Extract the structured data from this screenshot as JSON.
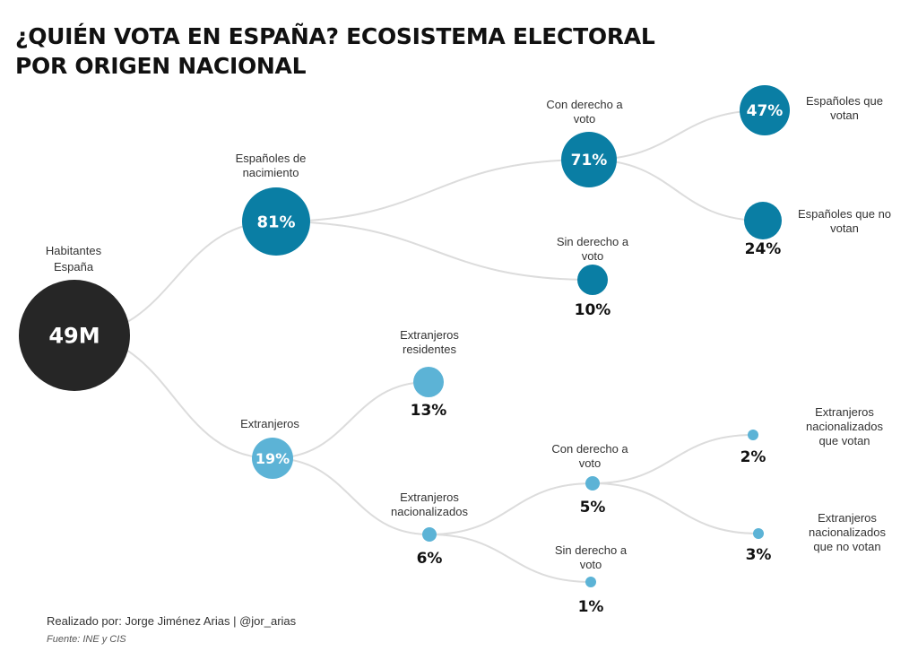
{
  "title": {
    "line1": "¿QUIÉN VOTA EN ESPAÑA? ECOSISTEMA ELECTORAL",
    "line2": "POR ORIGEN NACIONAL"
  },
  "colors": {
    "root": "#262626",
    "dark_blue": "#0a7ea4",
    "light_blue": "#5cb3d6",
    "link": "#dcdcdc"
  },
  "nodes": [
    {
      "id": "root",
      "value": "49M",
      "label": [
        "Habitantes",
        "España"
      ],
      "value_position": "inside",
      "color": "root"
    },
    {
      "id": "esp",
      "parent": "root",
      "value": "81%",
      "label": [
        "Españoles de",
        "nacimiento"
      ],
      "value_position": "inside",
      "color": "dark_blue"
    },
    {
      "id": "esp_con",
      "parent": "esp",
      "value": "71%",
      "label": [
        "Con derecho a",
        "voto"
      ],
      "value_position": "inside",
      "color": "dark_blue"
    },
    {
      "id": "esp_votan",
      "parent": "esp_con",
      "value": "47%",
      "label": [
        "Españoles que",
        "votan"
      ],
      "value_position": "inside",
      "color": "dark_blue"
    },
    {
      "id": "esp_novotan",
      "parent": "esp_con",
      "value": "24%",
      "label": [
        "Españoles que no",
        "votan"
      ],
      "value_position": "below",
      "color": "dark_blue"
    },
    {
      "id": "esp_sin",
      "parent": "esp",
      "value": "10%",
      "label": [
        "Sin derecho a",
        "voto"
      ],
      "value_position": "below",
      "color": "dark_blue"
    },
    {
      "id": "ext",
      "parent": "root",
      "value": "19%",
      "label": [
        "Extranjeros"
      ],
      "value_position": "inside",
      "color": "light_blue"
    },
    {
      "id": "ext_res",
      "parent": "ext",
      "value": "13%",
      "label": [
        "Extranjeros",
        "residentes"
      ],
      "value_position": "below",
      "color": "light_blue"
    },
    {
      "id": "ext_nac",
      "parent": "ext",
      "value": "6%",
      "label": [
        "Extranjeros",
        "nacionalizados"
      ],
      "value_position": "below",
      "color": "light_blue"
    },
    {
      "id": "ext_con",
      "parent": "ext_nac",
      "value": "5%",
      "label": [
        "Con derecho a",
        "voto"
      ],
      "value_position": "below",
      "color": "light_blue"
    },
    {
      "id": "ext_votan",
      "parent": "ext_con",
      "value": "2%",
      "label": [
        "Extranjeros",
        "nacionalizados",
        "que votan"
      ],
      "value_position": "below",
      "color": "light_blue"
    },
    {
      "id": "ext_novotan",
      "parent": "ext_con",
      "value": "3%",
      "label": [
        "Extranjeros",
        "nacionalizados",
        "que no votan"
      ],
      "value_position": "below",
      "color": "light_blue"
    },
    {
      "id": "ext_sin",
      "parent": "ext_nac",
      "value": "1%",
      "label": [
        "Sin derecho a",
        "voto"
      ],
      "value_position": "below",
      "color": "light_blue"
    }
  ],
  "footer": {
    "credit": "Realizado por: Jorge Jiménez Arias | @jor_arias",
    "source": "Fuente: INE y CIS"
  }
}
